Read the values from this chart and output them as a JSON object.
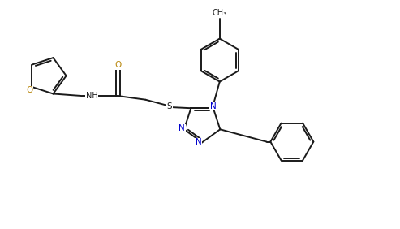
{
  "background_color": "#ffffff",
  "line_color": "#1a1a1a",
  "atom_color_O": "#b8860b",
  "atom_color_N": "#0000cd",
  "atom_color_S": "#1a1a1a",
  "figsize": [
    4.93,
    2.82
  ],
  "dpi": 100,
  "lw": 1.4,
  "fontsize": 7.5,
  "xlim": [
    0,
    9.3
  ],
  "ylim": [
    0,
    5.3
  ]
}
